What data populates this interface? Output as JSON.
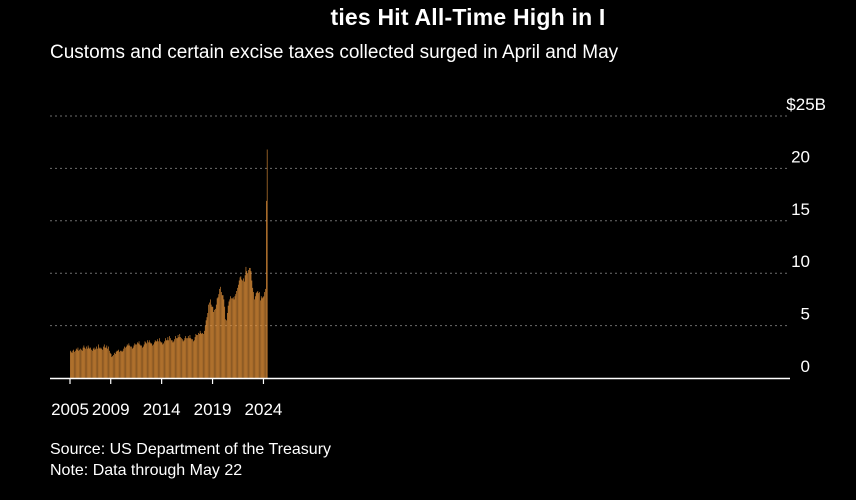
{
  "header": {
    "title": "ties Hit All-Time High in I",
    "subtitle": "Customs and certain excise taxes collected surged in April and May"
  },
  "footer": {
    "source": "Source: US Department of the Treasury",
    "note": "Note: Data through May 22"
  },
  "colors": {
    "background": "#000000",
    "bar": "#e2913a",
    "grid": "#6e6e6e",
    "text": "#ffffff"
  },
  "chart_data": {
    "type": "bar",
    "x_ticks": [
      "2005",
      "2009",
      "2014",
      "2019",
      "2024"
    ],
    "y_ticks": [
      "$25B",
      "20",
      "15",
      "10",
      "5",
      "0"
    ],
    "ylim": [
      0,
      25
    ],
    "grid": true,
    "yaxis_position": "right",
    "start": "2005-01",
    "end": "2024-05",
    "series": [
      {
        "annual_values": [
          [
            2005,
            [
              2.6,
              2.5,
              2.4,
              2.6,
              2.7,
              2.5,
              2.6,
              2.8,
              2.7,
              2.9,
              2.6,
              2.7
            ]
          ],
          [
            2006,
            [
              2.8,
              2.7,
              2.6,
              2.9,
              3.1,
              2.9,
              2.8,
              3.0,
              2.8,
              3.1,
              2.9,
              2.8
            ]
          ],
          [
            2007,
            [
              2.9,
              2.7,
              2.6,
              2.8,
              2.9,
              2.7,
              2.8,
              3.0,
              2.8,
              3.2,
              2.9,
              2.8
            ]
          ],
          [
            2008,
            [
              2.9,
              2.8,
              2.7,
              3.0,
              3.2,
              2.9,
              2.9,
              3.1,
              2.8,
              3.0,
              2.6,
              2.4
            ]
          ],
          [
            2009,
            [
              2.3,
              2.0,
              2.1,
              2.2,
              2.4,
              2.3,
              2.5,
              2.6,
              2.6,
              2.7,
              2.5,
              2.6
            ]
          ],
          [
            2010,
            [
              2.6,
              2.5,
              2.6,
              2.8,
              3.0,
              2.9,
              3.0,
              3.2,
              3.1,
              3.3,
              3.1,
              3.0
            ]
          ],
          [
            2011,
            [
              3.0,
              2.8,
              2.9,
              3.1,
              3.3,
              3.2,
              3.2,
              3.4,
              3.3,
              3.5,
              3.2,
              3.1
            ]
          ],
          [
            2012,
            [
              3.1,
              2.9,
              3.0,
              3.2,
              3.5,
              3.4,
              3.3,
              3.6,
              3.4,
              3.6,
              3.4,
              3.3
            ]
          ],
          [
            2013,
            [
              3.3,
              3.1,
              3.2,
              3.4,
              3.6,
              3.5,
              3.5,
              3.7,
              3.5,
              3.8,
              3.5,
              3.4
            ]
          ],
          [
            2014,
            [
              3.4,
              3.2,
              3.3,
              3.5,
              3.8,
              3.6,
              3.6,
              3.9,
              3.6,
              4.0,
              3.8,
              3.6
            ]
          ],
          [
            2015,
            [
              3.6,
              3.4,
              3.5,
              3.7,
              4.0,
              3.8,
              3.8,
              4.1,
              3.9,
              4.2,
              3.9,
              3.8
            ]
          ],
          [
            2016,
            [
              3.7,
              3.5,
              3.6,
              3.8,
              4.0,
              3.8,
              3.8,
              4.0,
              3.8,
              4.1,
              3.8,
              3.7
            ]
          ],
          [
            2017,
            [
              3.7,
              3.5,
              3.6,
              3.9,
              4.2,
              4.1,
              4.1,
              4.3,
              4.2,
              4.5,
              4.3,
              4.2
            ]
          ],
          [
            2018,
            [
              4.3,
              4.2,
              4.5,
              5.0,
              5.5,
              5.8,
              6.2,
              7.0,
              7.2,
              7.5,
              7.0,
              6.8
            ]
          ],
          [
            2019,
            [
              6.8,
              6.3,
              6.5,
              6.6,
              7.0,
              7.6,
              7.7,
              8.0,
              8.5,
              8.7,
              8.2,
              7.9
            ]
          ],
          [
            2020,
            [
              7.9,
              7.5,
              6.8,
              5.6,
              5.5,
              6.2,
              6.9,
              7.3,
              7.5,
              7.8,
              7.6,
              7.6
            ]
          ],
          [
            2021,
            [
              7.7,
              7.5,
              7.8,
              8.0,
              8.3,
              8.6,
              8.9,
              9.3,
              9.6,
              9.7,
              9.4,
              9.3
            ]
          ],
          [
            2022,
            [
              9.5,
              9.2,
              9.8,
              10.6,
              10.2,
              10.0,
              10.3,
              10.5,
              10.5,
              10.2,
              9.3,
              8.6
            ]
          ],
          [
            2023,
            [
              8.2,
              7.5,
              7.8,
              8.1,
              8.2,
              8.3,
              8.1,
              8.2,
              7.4,
              7.8,
              7.6,
              7.7
            ]
          ],
          [
            2024,
            [
              7.8,
              8.2,
              8.5,
              16.9,
              21.8
            ]
          ]
        ]
      }
    ]
  }
}
